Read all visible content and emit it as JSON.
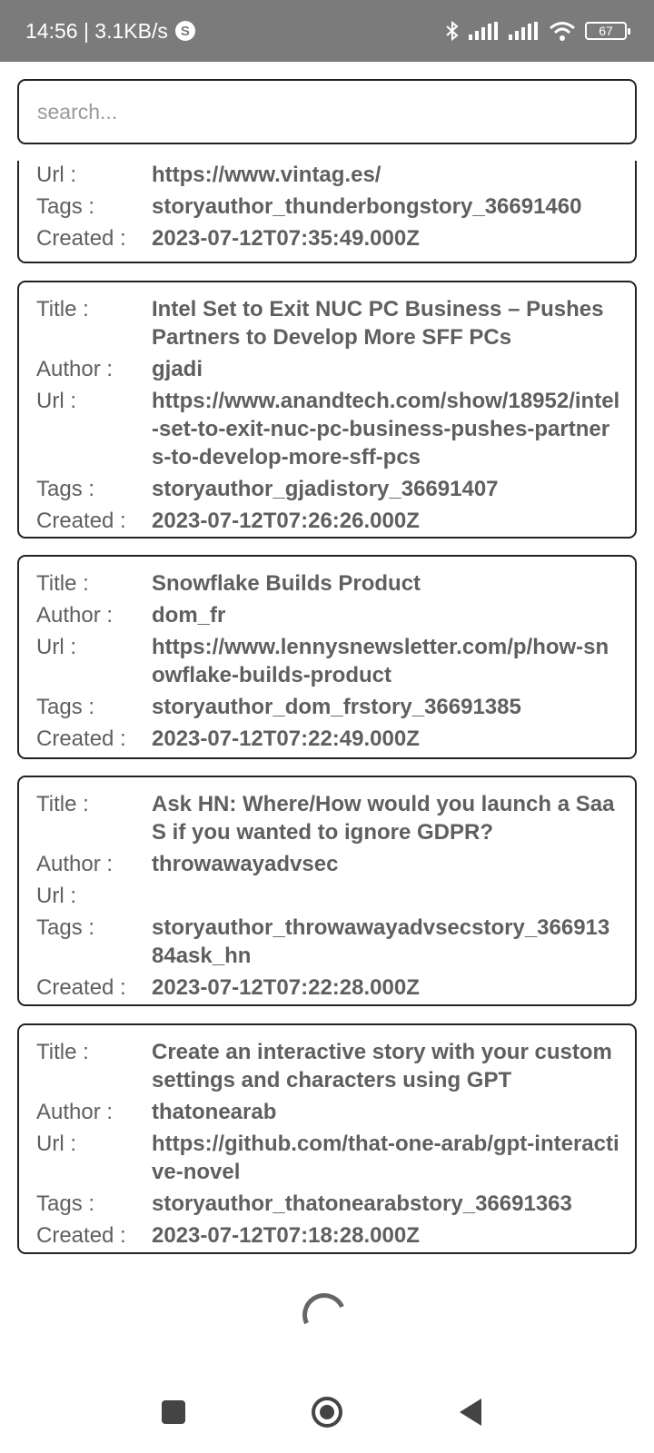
{
  "status_bar": {
    "time_speed": "14:56 | 3.1KB/s",
    "badge": "S",
    "battery": "67"
  },
  "search": {
    "placeholder": "search..."
  },
  "labels": {
    "title": "Title :",
    "author": "Author :",
    "url": "Url :",
    "tags": "Tags :",
    "created": "Created :"
  },
  "stories": [
    {
      "url": "https://www.vintag.es/",
      "tags": "storyauthor_thunderbongstory_36691460",
      "created": "2023-07-12T07:35:49.000Z"
    },
    {
      "title": "Intel Set to Exit NUC PC Business – Pushes Partners to Develop More SFF PCs",
      "author": "gjadi",
      "url": "https://www.anandtech.com/show/18952/intel-set-to-exit-nuc-pc-business-pushes-partners-to-develop-more-sff-pcs",
      "tags": "storyauthor_gjadistory_36691407",
      "created": "2023-07-12T07:26:26.000Z"
    },
    {
      "title": "Snowflake Builds Product",
      "author": "dom_fr",
      "url": "https://www.lennysnewsletter.com/p/how-snowflake-builds-product",
      "tags": "storyauthor_dom_frstory_36691385",
      "created": "2023-07-12T07:22:49.000Z"
    },
    {
      "title": "Ask HN: Where/How would you launch a SaaS if you wanted to ignore GDPR?",
      "author": "throwawayadvsec",
      "url": "",
      "tags": "storyauthor_throwawayadvsecstory_36691384ask_hn",
      "created": "2023-07-12T07:22:28.000Z"
    },
    {
      "title": "Create an interactive story with your custom settings and characters using GPT",
      "author": "thatonearab",
      "url": "https://github.com/that-one-arab/gpt-interactive-novel",
      "tags": "storyauthor_thatonearabstory_36691363",
      "created": "2023-07-12T07:18:28.000Z"
    }
  ]
}
